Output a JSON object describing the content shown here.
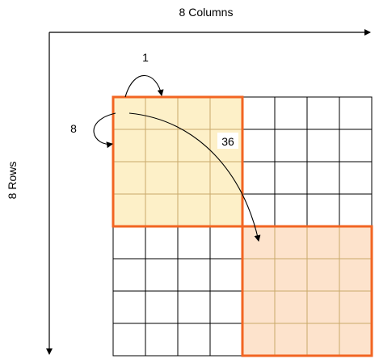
{
  "labels": {
    "columns": "8 Columns",
    "rows": "8 Rows",
    "stride_one": "1",
    "stride_row": "8",
    "stride_block": "36"
  },
  "grid": {
    "rows": 8,
    "cols": 8,
    "highlighted_blocks": [
      {
        "first_row": 0,
        "first_col": 0,
        "size": 4
      },
      {
        "first_row": 4,
        "first_col": 4,
        "size": 4
      }
    ]
  },
  "colors": {
    "grid_line": "#000000",
    "block_border": "#f26522",
    "block_inner_line": "#c9a96a",
    "block1_fill": "#fdf0c8",
    "block2_fill": "#fde3cc",
    "axis": "#000000"
  }
}
